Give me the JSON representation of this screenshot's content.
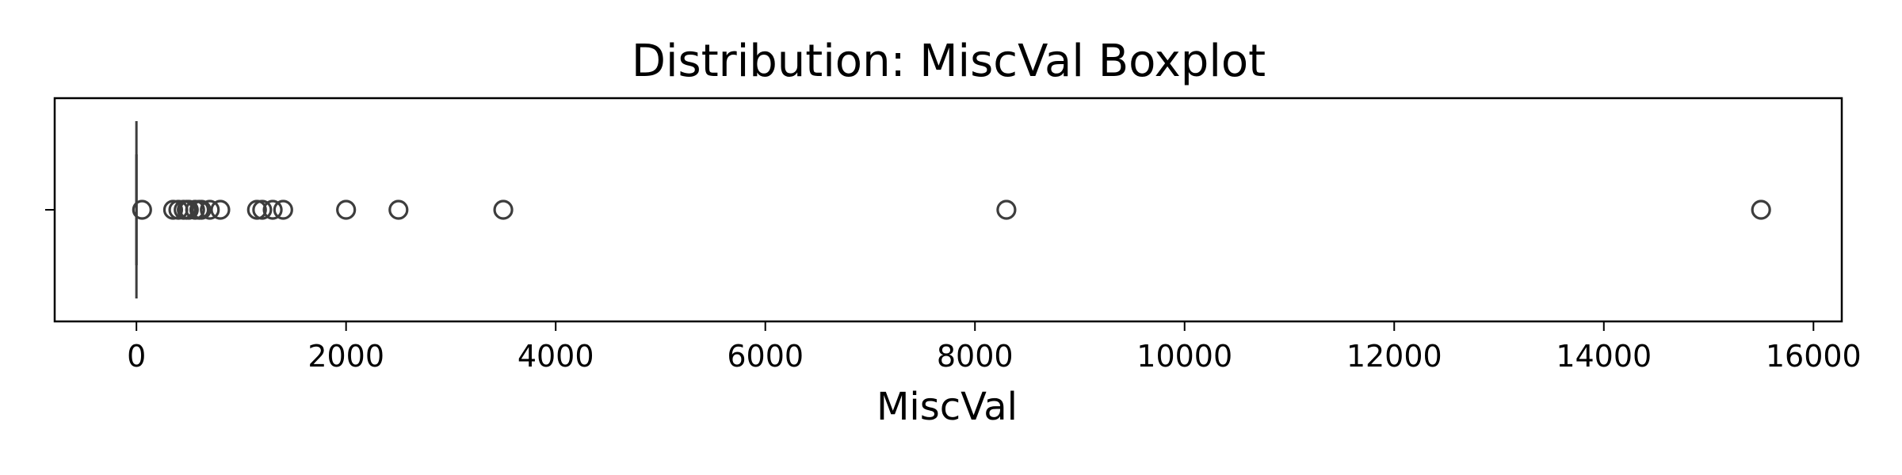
{
  "chart_data": {
    "type": "box",
    "title": "Distribution: MiscVal Boxplot",
    "xlabel": "MiscVal",
    "ylabel": "",
    "orientation": "horizontal",
    "xlim": [
      -780,
      16270
    ],
    "xticks": [
      0,
      2000,
      4000,
      6000,
      8000,
      10000,
      12000,
      14000,
      16000
    ],
    "xtick_labels": [
      "0",
      "2000",
      "4000",
      "6000",
      "8000",
      "10000",
      "12000",
      "14000",
      "16000"
    ],
    "grid": false,
    "box": {
      "min": 0,
      "q1": 0,
      "median": 0,
      "q3": 0,
      "max": 0
    },
    "outliers": [
      54,
      350,
      400,
      450,
      480,
      500,
      560,
      600,
      620,
      700,
      800,
      1150,
      1200,
      1300,
      1400,
      2000,
      2500,
      3500,
      8300,
      15500
    ],
    "colors": {
      "box": "#3d3d3d",
      "frame": "#000000"
    }
  }
}
